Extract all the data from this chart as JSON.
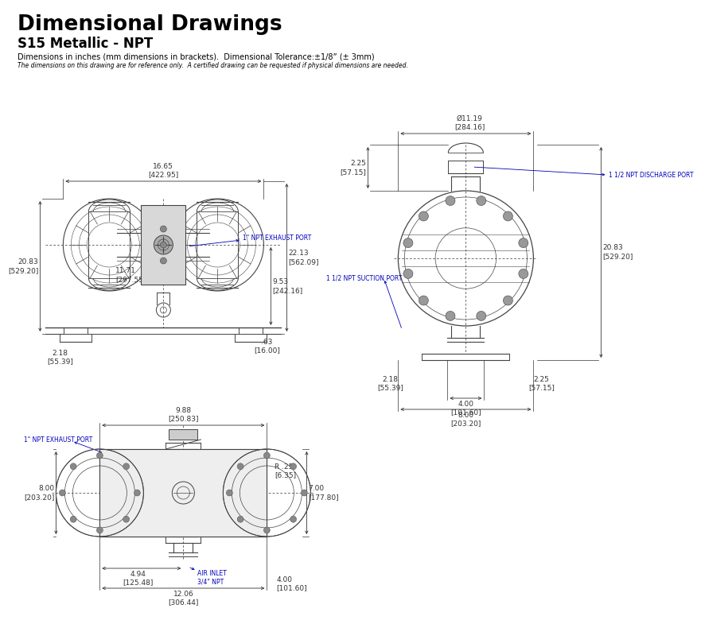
{
  "title": "Dimensional Drawings",
  "subtitle": "S15 Metallic - NPT",
  "dim_note": "Dimensions in inches (mm dimensions in brackets).  Dimensional Tolerance:±1/8” (± 3mm)",
  "ref_note": "The dimensions on this drawing are for reference only.  A certified drawing can be requested if physical dimensions are needed.",
  "bg_color": "#ffffff",
  "text_color": "#000000",
  "dim_color": "#333333",
  "label_color": "#0000bb",
  "drawing_color": "#444444",
  "front_dim": {
    "width": "16.65\n[422.95]",
    "h_left": "20.83\n[529.20]",
    "h_right": "22.13\n[562.09]",
    "h_mid": "9.53\n[242.16]",
    "w_mid": "11.71\n[297.55]",
    "b_left": "2.18\n[55.39]",
    "b_right": ".63\n[16.00]",
    "exhaust": "1\" NPT EXHAUST PORT"
  },
  "side_dim": {
    "diam": "Ø11.19\n[284.16]",
    "top": "2.25\n[57.15]",
    "right": "20.83\n[529.20]",
    "bl": "2.18\n[55.39]",
    "br": "2.25\n[57.15]",
    "bm": "4.00\n[101.60]",
    "bf": "8.00\n[203.20]",
    "discharge": "1 1/2 NPT DISCHARGE PORT",
    "suction": "1 1/2 NPT SUCTION PORT"
  },
  "top_dim": {
    "width": "9.88\n[250.83]",
    "left": "8.00\n[203.20]",
    "right": "7.00\n[177.80]",
    "bl": "4.94\n[125.48]",
    "bm": "12.06\n[306.44]",
    "br": "4.00\n[101.60]",
    "radius": "R .25\n[6.35]",
    "exhaust": "1\" NPT EXHAUST PORT",
    "air": "AIR INLET\n3/4\" NPT"
  }
}
